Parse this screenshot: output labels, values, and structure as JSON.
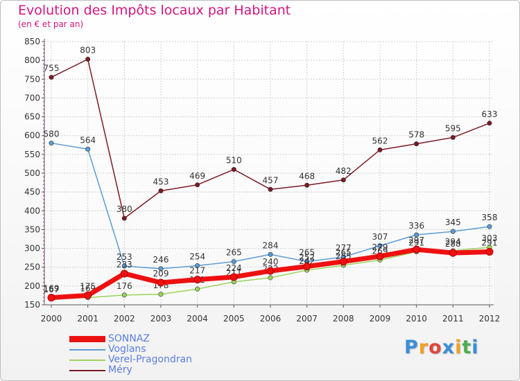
{
  "title": "Evolution des Impôts locaux par Habitant",
  "subtitle": "(en € et par an)",
  "logo": {
    "text": "Proxiti",
    "letter_colors": [
      "#3a8fd8",
      "#f0a020",
      "#e0473a",
      "#3a8fd8",
      "#f0a020",
      "#4caf50",
      "#3a8fd8"
    ]
  },
  "chart_data": {
    "type": "line",
    "x": [
      "2000",
      "2001",
      "2002",
      "2003",
      "2004",
      "2005",
      "2006",
      "2007",
      "2008",
      "2009",
      "2010",
      "2011",
      "2012"
    ],
    "ylim": [
      150,
      850
    ],
    "yticks": [
      150,
      200,
      250,
      300,
      350,
      400,
      450,
      500,
      550,
      600,
      650,
      700,
      750,
      800,
      850
    ],
    "grid": true,
    "legend_position": "bottom-left",
    "series": [
      {
        "name": "Méry",
        "color": "#7b1a24",
        "values": [
          755,
          803,
          380,
          453,
          469,
          510,
          457,
          468,
          482,
          562,
          578,
          595,
          633
        ]
      },
      {
        "name": "Voglans",
        "color": "#5b9bd5",
        "values": [
          580,
          564,
          253,
          246,
          254,
          265,
          284,
          265,
          277,
          307,
          336,
          345,
          358
        ]
      },
      {
        "name": "Verel-Pragondran",
        "color": "#9ad35a",
        "values": [
          167,
          169,
          176,
          178,
          192,
          211,
          222,
          242,
          255,
          269,
          291,
          294,
          303
        ]
      },
      {
        "name": "SONNAZ",
        "color": "#ee1111",
        "values": [
          169,
          175,
          233,
          209,
          217,
          224,
          240,
          252,
          265,
          279,
          297,
          288,
          291
        ]
      }
    ]
  },
  "legend": [
    {
      "name": "SONNAZ",
      "color": "#ee1111"
    },
    {
      "name": "Voglans",
      "color": "#5b9bd5"
    },
    {
      "name": "Verel-Pragondran",
      "color": "#9ad35a"
    },
    {
      "name": "Méry",
      "color": "#7b1a24"
    }
  ]
}
